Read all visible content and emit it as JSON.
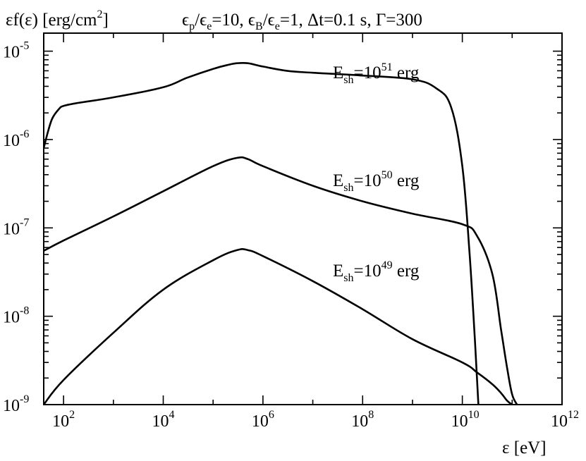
{
  "chart_data": {
    "type": "line",
    "title": {
      "params": [
        {
          "sym": "ϵ",
          "sub": "p",
          "mid": "/ϵ",
          "sub2": "e",
          "tail": "=10, "
        },
        {
          "sym": "ϵ",
          "sub": "B",
          "mid": "/ϵ",
          "sub2": "e",
          "tail": "=1, Δt=0.1 s, Γ=300"
        }
      ]
    },
    "ylabel": {
      "main": "εf(ε) [erg/cm",
      "sup": "2",
      "end": "]"
    },
    "xlabel": "ε [eV]",
    "x_scale": "log",
    "y_scale": "log",
    "xlim": [
      40,
      1000000000000.0
    ],
    "ylim": [
      1e-09,
      1.6e-05
    ],
    "x_ticks": [
      {
        "base": "10",
        "exp": "2"
      },
      {
        "base": "10",
        "exp": "4"
      },
      {
        "base": "10",
        "exp": "6"
      },
      {
        "base": "10",
        "exp": "8"
      },
      {
        "base": "10",
        "exp": "10"
      },
      {
        "base": "10",
        "exp": "12"
      }
    ],
    "y_ticks": [
      {
        "base": "10",
        "exp": "-9"
      },
      {
        "base": "10",
        "exp": "-8"
      },
      {
        "base": "10",
        "exp": "-7"
      },
      {
        "base": "10",
        "exp": "-6"
      },
      {
        "base": "10",
        "exp": "-5"
      }
    ],
    "grid": false,
    "series": [
      {
        "annotation": {
          "pre": "E",
          "sub": "sh",
          "mid": "=10",
          "sup": "51",
          "post": " erg"
        },
        "x": [
          40,
          50,
          60,
          80,
          100,
          200,
          1000,
          10000.0,
          30000.0,
          100000.0,
          200000.0,
          300000.0,
          500000.0,
          1000000.0,
          3000000.0,
          10000000.0,
          100000000.0,
          1000000000.0,
          3000000000.0,
          6000000000.0,
          10000000000.0,
          14000000000.0,
          18000000000.0,
          21000000000.0
        ],
        "y": [
          8e-07,
          1.3e-06,
          1.75e-06,
          2.2e-06,
          2.4e-06,
          2.6e-06,
          3e-06,
          3.9e-06,
          5e-06,
          6.3e-06,
          7e-06,
          7.3e-06,
          7.3e-06,
          6.7e-06,
          6e-06,
          5.7e-06,
          5.3e-06,
          4.8e-06,
          3.8e-06,
          2.3e-06,
          5e-07,
          5e-08,
          5e-09,
          1e-09
        ]
      },
      {
        "annotation": {
          "pre": "E",
          "sub": "sh",
          "mid": "=10",
          "sup": "50",
          "post": " erg"
        },
        "x": [
          40,
          100,
          1000,
          10000.0,
          100000.0,
          300000.0,
          500000.0,
          1000000.0,
          10000000.0,
          100000000.0,
          1000000000.0,
          10000000000.0,
          20000000000.0,
          40000000000.0,
          60000000000.0,
          80000000000.0,
          100000000000.0,
          125000000000.0
        ],
        "y": [
          5.5e-08,
          7.2e-08,
          1.35e-07,
          2.6e-07,
          5e-07,
          6.2e-07,
          6e-07,
          5e-07,
          3e-07,
          2e-07,
          1.45e-07,
          1.1e-07,
          8e-08,
          3e-08,
          7e-09,
          2.5e-09,
          1.3e-09,
          1e-09
        ]
      },
      {
        "annotation": {
          "pre": "E",
          "sub": "sh",
          "mid": "=10",
          "sup": "49",
          "post": " erg"
        },
        "x": [
          40,
          100,
          1000,
          10000.0,
          100000.0,
          300000.0,
          500000.0,
          1000000.0,
          10000000.0,
          100000000.0,
          1000000000.0,
          10000000000.0,
          20000000000.0,
          40000000000.0,
          60000000000.0,
          80000000000.0,
          100000000000.0
        ],
        "y": [
          1e-09,
          1.9e-09,
          6.5e-09,
          2e-08,
          4.3e-08,
          5.6e-08,
          5.6e-08,
          4.8e-08,
          2.5e-08,
          1.2e-08,
          5.5e-09,
          3e-09,
          2.3e-09,
          1.7e-09,
          1.35e-09,
          1.1e-09,
          1e-09
        ]
      }
    ]
  }
}
